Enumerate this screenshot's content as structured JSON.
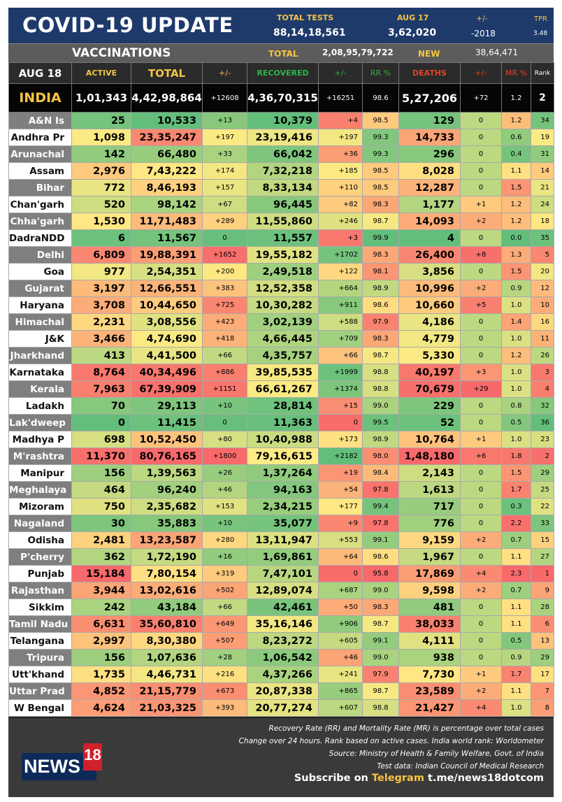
{
  "header": {
    "title": "COVID-19 UPDATE",
    "total_tests_label": "TOTAL TESTS",
    "total_tests_value": "88,14,18,561",
    "date_label": "AUG 17",
    "date_value": "3,62,020",
    "change_label": "+/-",
    "change_value": "-2018",
    "tpr_label": "TPR",
    "tpr_value": "3.48"
  },
  "vaccinations": {
    "title": "VACCINATIONS",
    "total_label": "TOTAL",
    "total_value": "2,08,95,79,722",
    "new_label": "NEW",
    "new_value": "38,64,471"
  },
  "columns": {
    "date": "AUG 18",
    "active": "ACTIVE",
    "total": "TOTAL",
    "total_change": "+/-",
    "recovered": "RECOVERED",
    "recovered_change": "+/-",
    "rr": "RR %",
    "deaths": "DEATHS",
    "deaths_change": "+/-",
    "mr": "MR %",
    "rank": "Rank"
  },
  "colors": {
    "header_bg": "#1e3a6b",
    "accent_yellow": "#f5c542",
    "recovered_green": "#2db24a",
    "deaths_red": "#e0442a",
    "heat_green": "#63be7b",
    "heat_yellow": "#ffeb84",
    "heat_red": "#f8696b"
  },
  "india": {
    "name": "INDIA",
    "active": "1,01,343",
    "total": "4,42,98,864",
    "total_change": "+12608",
    "recovered": "4,36,70,315",
    "recovered_change": "+16251",
    "rr": "98.6",
    "deaths": "5,27,206",
    "deaths_change": "+72",
    "mr": "1.2",
    "rank": "2"
  },
  "states": [
    {
      "name": "A&N Is",
      "active": "25",
      "total": "10,533",
      "total_change": "+13",
      "recovered": "10,379",
      "recovered_change": "+4",
      "rr": "98.5",
      "deaths": "129",
      "deaths_change": "0",
      "mr": "1.2",
      "rank": "34"
    },
    {
      "name": "Andhra Pr",
      "active": "1,098",
      "total": "23,35,247",
      "total_change": "+197",
      "recovered": "23,19,416",
      "recovered_change": "+197",
      "rr": "99.3",
      "deaths": "14,733",
      "deaths_change": "0",
      "mr": "0.6",
      "rank": "19"
    },
    {
      "name": "Arunachal",
      "active": "142",
      "total": "66,480",
      "total_change": "+33",
      "recovered": "66,042",
      "recovered_change": "+36",
      "rr": "99.3",
      "deaths": "296",
      "deaths_change": "0",
      "mr": "0.4",
      "rank": "31"
    },
    {
      "name": "Assam",
      "active": "2,976",
      "total": "7,43,222",
      "total_change": "+174",
      "recovered": "7,32,218",
      "recovered_change": "+185",
      "rr": "98.5",
      "deaths": "8,028",
      "deaths_change": "0",
      "mr": "1.1",
      "rank": "14"
    },
    {
      "name": "Bihar",
      "active": "772",
      "total": "8,46,193",
      "total_change": "+157",
      "recovered": "8,33,134",
      "recovered_change": "+110",
      "rr": "98.5",
      "deaths": "12,287",
      "deaths_change": "0",
      "mr": "1.5",
      "rank": "21"
    },
    {
      "name": "Chan'garh",
      "active": "520",
      "total": "98,142",
      "total_change": "+67",
      "recovered": "96,445",
      "recovered_change": "+82",
      "rr": "98.3",
      "deaths": "1,177",
      "deaths_change": "+1",
      "mr": "1.2",
      "rank": "24"
    },
    {
      "name": "Chha'garh",
      "active": "1,530",
      "total": "11,71,483",
      "total_change": "+289",
      "recovered": "11,55,860",
      "recovered_change": "+246",
      "rr": "98.7",
      "deaths": "14,093",
      "deaths_change": "+2",
      "mr": "1.2",
      "rank": "18"
    },
    {
      "name": "DadraNDD",
      "active": "6",
      "total": "11,567",
      "total_change": "0",
      "recovered": "11,557",
      "recovered_change": "+3",
      "rr": "99.9",
      "deaths": "4",
      "deaths_change": "0",
      "mr": "0.0",
      "rank": "35"
    },
    {
      "name": "Delhi",
      "active": "6,809",
      "total": "19,88,391",
      "total_change": "+1652",
      "recovered": "19,55,182",
      "recovered_change": "+1702",
      "rr": "98.3",
      "deaths": "26,400",
      "deaths_change": "+8",
      "mr": "1.3",
      "rank": "5"
    },
    {
      "name": "Goa",
      "active": "977",
      "total": "2,54,351",
      "total_change": "+200",
      "recovered": "2,49,518",
      "recovered_change": "+122",
      "rr": "98.1",
      "deaths": "3,856",
      "deaths_change": "0",
      "mr": "1.5",
      "rank": "20"
    },
    {
      "name": "Gujarat",
      "active": "3,197",
      "total": "12,66,551",
      "total_change": "+383",
      "recovered": "12,52,358",
      "recovered_change": "+664",
      "rr": "98.9",
      "deaths": "10,996",
      "deaths_change": "+2",
      "mr": "0.9",
      "rank": "12"
    },
    {
      "name": "Haryana",
      "active": "3,708",
      "total": "10,44,650",
      "total_change": "+725",
      "recovered": "10,30,282",
      "recovered_change": "+911",
      "rr": "98.6",
      "deaths": "10,660",
      "deaths_change": "+5",
      "mr": "1.0",
      "rank": "10"
    },
    {
      "name": "Himachal",
      "active": "2,231",
      "total": "3,08,556",
      "total_change": "+423",
      "recovered": "3,02,139",
      "recovered_change": "+588",
      "rr": "97.9",
      "deaths": "4,186",
      "deaths_change": "0",
      "mr": "1.4",
      "rank": "16"
    },
    {
      "name": "J&K",
      "active": "3,466",
      "total": "4,74,690",
      "total_change": "+418",
      "recovered": "4,66,445",
      "recovered_change": "+709",
      "rr": "98.3",
      "deaths": "4,779",
      "deaths_change": "0",
      "mr": "1.0",
      "rank": "11"
    },
    {
      "name": "Jharkhand",
      "active": "413",
      "total": "4,41,500",
      "total_change": "+66",
      "recovered": "4,35,757",
      "recovered_change": "+66",
      "rr": "98.7",
      "deaths": "5,330",
      "deaths_change": "0",
      "mr": "1.2",
      "rank": "26"
    },
    {
      "name": "Karnataka",
      "active": "8,764",
      "total": "40,34,496",
      "total_change": "+886",
      "recovered": "39,85,535",
      "recovered_change": "+1999",
      "rr": "98.8",
      "deaths": "40,197",
      "deaths_change": "+3",
      "mr": "1.0",
      "rank": "3"
    },
    {
      "name": "Kerala",
      "active": "7,963",
      "total": "67,39,909",
      "total_change": "+1151",
      "recovered": "66,61,267",
      "recovered_change": "+1374",
      "rr": "98.8",
      "deaths": "70,679",
      "deaths_change": "+29",
      "mr": "1.0",
      "rank": "4"
    },
    {
      "name": "Ladakh",
      "active": "70",
      "total": "29,113",
      "total_change": "+10",
      "recovered": "28,814",
      "recovered_change": "+15",
      "rr": "99.0",
      "deaths": "229",
      "deaths_change": "0",
      "mr": "0.8",
      "rank": "32"
    },
    {
      "name": "Lak'dweep",
      "active": "0",
      "total": "11,415",
      "total_change": "0",
      "recovered": "11,363",
      "recovered_change": "0",
      "rr": "99.5",
      "deaths": "52",
      "deaths_change": "0",
      "mr": "0.5",
      "rank": "36"
    },
    {
      "name": "Madhya P",
      "active": "698",
      "total": "10,52,450",
      "total_change": "+80",
      "recovered": "10,40,988",
      "recovered_change": "+173",
      "rr": "98.9",
      "deaths": "10,764",
      "deaths_change": "+1",
      "mr": "1.0",
      "rank": "23"
    },
    {
      "name": "M'rashtra",
      "active": "11,370",
      "total": "80,76,165",
      "total_change": "+1800",
      "recovered": "79,16,615",
      "recovered_change": "+2182",
      "rr": "98.0",
      "deaths": "1,48,180",
      "deaths_change": "+6",
      "mr": "1.8",
      "rank": "2"
    },
    {
      "name": "Manipur",
      "active": "156",
      "total": "1,39,563",
      "total_change": "+26",
      "recovered": "1,37,264",
      "recovered_change": "+19",
      "rr": "98.4",
      "deaths": "2,143",
      "deaths_change": "0",
      "mr": "1.5",
      "rank": "29"
    },
    {
      "name": "Meghalaya",
      "active": "464",
      "total": "96,240",
      "total_change": "+46",
      "recovered": "94,163",
      "recovered_change": "+54",
      "rr": "97.8",
      "deaths": "1,613",
      "deaths_change": "0",
      "mr": "1.7",
      "rank": "25"
    },
    {
      "name": "Mizoram",
      "active": "750",
      "total": "2,35,682",
      "total_change": "+153",
      "recovered": "2,34,215",
      "recovered_change": "+177",
      "rr": "99.4",
      "deaths": "717",
      "deaths_change": "0",
      "mr": "0.3",
      "rank": "22"
    },
    {
      "name": "Nagaland",
      "active": "30",
      "total": "35,883",
      "total_change": "+10",
      "recovered": "35,077",
      "recovered_change": "+9",
      "rr": "97.8",
      "deaths": "776",
      "deaths_change": "0",
      "mr": "2.2",
      "rank": "33"
    },
    {
      "name": "Odisha",
      "active": "2,481",
      "total": "13,23,587",
      "total_change": "+280",
      "recovered": "13,11,947",
      "recovered_change": "+553",
      "rr": "99.1",
      "deaths": "9,159",
      "deaths_change": "+2",
      "mr": "0.7",
      "rank": "15"
    },
    {
      "name": "P'cherry",
      "active": "362",
      "total": "1,72,190",
      "total_change": "+16",
      "recovered": "1,69,861",
      "recovered_change": "+64",
      "rr": "98.6",
      "deaths": "1,967",
      "deaths_change": "0",
      "mr": "1.1",
      "rank": "27"
    },
    {
      "name": "Punjab",
      "active": "15,184",
      "total": "7,80,154",
      "total_change": "+319",
      "recovered": "7,47,101",
      "recovered_change": "0",
      "rr": "95.8",
      "deaths": "17,869",
      "deaths_change": "+4",
      "mr": "2.3",
      "rank": "1"
    },
    {
      "name": "Rajasthan",
      "active": "3,944",
      "total": "13,02,616",
      "total_change": "+502",
      "recovered": "12,89,074",
      "recovered_change": "+687",
      "rr": "99.0",
      "deaths": "9,598",
      "deaths_change": "+2",
      "mr": "0.7",
      "rank": "9"
    },
    {
      "name": "Sikkim",
      "active": "242",
      "total": "43,184",
      "total_change": "+66",
      "recovered": "42,461",
      "recovered_change": "+50",
      "rr": "98.3",
      "deaths": "481",
      "deaths_change": "0",
      "mr": "1.1",
      "rank": "28"
    },
    {
      "name": "Tamil Nadu",
      "active": "6,631",
      "total": "35,60,810",
      "total_change": "+649",
      "recovered": "35,16,146",
      "recovered_change": "+906",
      "rr": "98.7",
      "deaths": "38,033",
      "deaths_change": "0",
      "mr": "1.1",
      "rank": "6"
    },
    {
      "name": "Telangana",
      "active": "2,997",
      "total": "8,30,380",
      "total_change": "+507",
      "recovered": "8,23,272",
      "recovered_change": "+605",
      "rr": "99.1",
      "deaths": "4,111",
      "deaths_change": "0",
      "mr": "0.5",
      "rank": "13"
    },
    {
      "name": "Tripura",
      "active": "156",
      "total": "1,07,636",
      "total_change": "+28",
      "recovered": "1,06,542",
      "recovered_change": "+46",
      "rr": "99.0",
      "deaths": "938",
      "deaths_change": "0",
      "mr": "0.9",
      "rank": "29"
    },
    {
      "name": "Utt'khand",
      "active": "1,735",
      "total": "4,46,731",
      "total_change": "+216",
      "recovered": "4,37,266",
      "recovered_change": "+241",
      "rr": "97.9",
      "deaths": "7,730",
      "deaths_change": "+1",
      "mr": "1.7",
      "rank": "17"
    },
    {
      "name": "Uttar Prad",
      "active": "4,852",
      "total": "21,15,779",
      "total_change": "+673",
      "recovered": "20,87,338",
      "recovered_change": "+865",
      "rr": "98.7",
      "deaths": "23,589",
      "deaths_change": "+2",
      "mr": "1.1",
      "rank": "7"
    },
    {
      "name": "W Bengal",
      "active": "4,624",
      "total": "21,03,325",
      "total_change": "+393",
      "recovered": "20,77,274",
      "recovered_change": "+607",
      "rr": "98.8",
      "deaths": "21,427",
      "deaths_change": "+4",
      "mr": "1.0",
      "rank": "8"
    }
  ],
  "footer": {
    "notes": [
      "Recovery Rate (RR) and Mortality Rate (MR) is percentage over total cases",
      "Change over 24 hours. Rank based on active cases. India world rank: Worldometer",
      "Source: Ministry of Health & Family Welfare, Govt. of India",
      "Test data: Indian Council of Medical Research"
    ],
    "subscribe_prefix": "Subscribe on",
    "subscribe_platform": "Telegram",
    "subscribe_link": "t.me/news18dotcom",
    "logo_text": "NEWS",
    "logo_number": "18"
  }
}
